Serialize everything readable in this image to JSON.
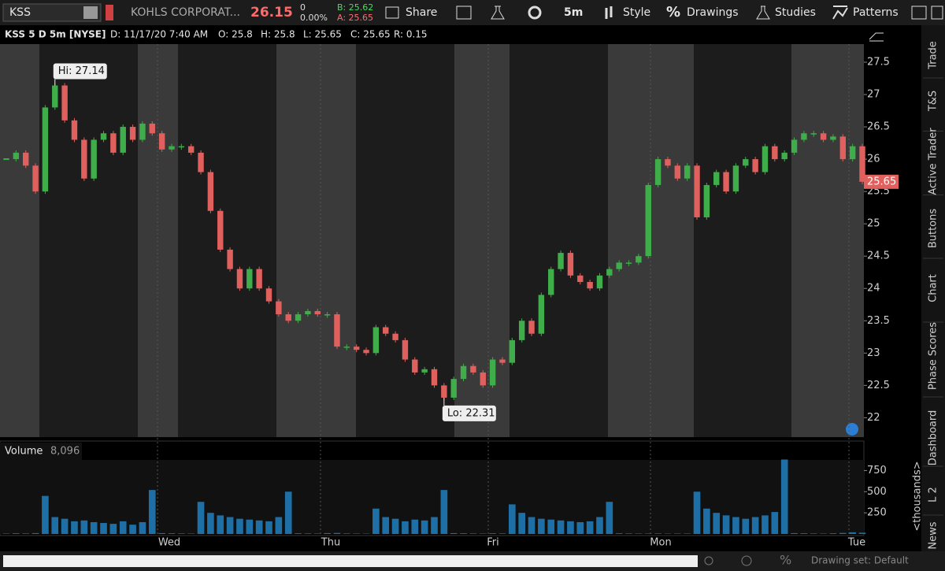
{
  "toolbar": {
    "symbol": "KSS",
    "company": "KOHLS CORPORAT...",
    "last": "26.15",
    "change": "0",
    "change_pct": "0.00%",
    "bid": "B: 25.62",
    "ask": "A: 25.65",
    "share": "Share",
    "interval": "5m",
    "style": "Style",
    "drawings": "Drawings",
    "studies": "Studies",
    "patterns": "Patterns"
  },
  "header": {
    "title": "KSS 5 D 5m [NYSE]",
    "date": "D: 11/17/20 7:40 AM",
    "open": "O: 25.8",
    "high": "H: 25.8",
    "low": "L: 25.65",
    "close": "C: 25.65",
    "range": "R: 0.15"
  },
  "side_tabs": [
    "Trade",
    "T&S",
    "Active Trader",
    "Buttons",
    "Chart",
    "Phase Scores",
    "Dashboard",
    "L 2",
    "News"
  ],
  "footer": {
    "drawing_set": "Drawing set: Default"
  },
  "chart_data": [
    {
      "type": "candlestick",
      "values": [
        26.0,
        26.1,
        25.9,
        25.5,
        26.8,
        27.14,
        26.6,
        26.3,
        25.7,
        26.3,
        26.4,
        26.1,
        26.5,
        26.3,
        26.55,
        26.4,
        26.15,
        26.2,
        26.2,
        26.1,
        25.8,
        25.2,
        24.6,
        24.3,
        24.0,
        24.3,
        24.0,
        23.8,
        23.6,
        23.5,
        23.6,
        23.65,
        23.6,
        23.6,
        23.1,
        23.1,
        23.05,
        23.0,
        23.4,
        23.3,
        23.2,
        22.9,
        22.7,
        22.75,
        22.5,
        22.31,
        22.6,
        22.8,
        22.7,
        22.5,
        22.9,
        22.85,
        23.2,
        23.5,
        23.3,
        23.9,
        24.3,
        24.55,
        24.2,
        24.1,
        24.0,
        24.2,
        24.3,
        24.4,
        24.4,
        24.5,
        25.6,
        26.0,
        25.9,
        25.7,
        25.9,
        25.1,
        25.6,
        25.8,
        25.5,
        25.9,
        26.0,
        25.8,
        26.2,
        26.0,
        26.1,
        26.3,
        26.4,
        26.4,
        26.3,
        26.35,
        26.0,
        26.2,
        25.65
      ],
      "up_color": "#3fae4a",
      "down_color": "#e0605e",
      "ylim": [
        21.7,
        27.78
      ],
      "yticks": [
        22,
        22.5,
        23,
        23.5,
        24,
        24.5,
        25,
        25.5,
        26,
        26.5,
        27,
        27.5
      ],
      "annotations": [
        {
          "label": "Hi: 27.14",
          "value": 27.14
        },
        {
          "label": "Lo: 22.31",
          "value": 22.31
        }
      ],
      "last_price": 25.65
    },
    {
      "type": "bar",
      "title": "Volume",
      "last_volume": "8,096",
      "y_label": "<thousands>",
      "color": "#1d6fa5",
      "values": [
        5,
        8,
        6,
        10,
        450,
        200,
        180,
        150,
        160,
        140,
        130,
        120,
        150,
        110,
        140,
        520,
        10,
        8,
        6,
        5,
        380,
        250,
        220,
        200,
        180,
        170,
        160,
        150,
        200,
        500,
        8,
        6,
        5,
        10,
        12,
        6,
        5,
        4,
        300,
        200,
        180,
        150,
        170,
        160,
        200,
        520,
        10,
        8,
        6,
        5,
        8,
        6,
        350,
        250,
        200,
        180,
        170,
        160,
        150,
        140,
        150,
        200,
        380,
        8,
        6,
        5,
        5,
        6,
        4,
        5,
        5,
        500,
        300,
        250,
        220,
        200,
        180,
        200,
        220,
        260,
        880,
        10,
        8,
        6,
        5,
        8,
        12,
        20,
        15
      ],
      "ylim": [
        0,
        875
      ],
      "yticks": [
        250,
        500,
        750
      ],
      "x_labels": [
        "Wed",
        "Thu",
        "Fri",
        "Mon",
        "Tue"
      ]
    }
  ]
}
